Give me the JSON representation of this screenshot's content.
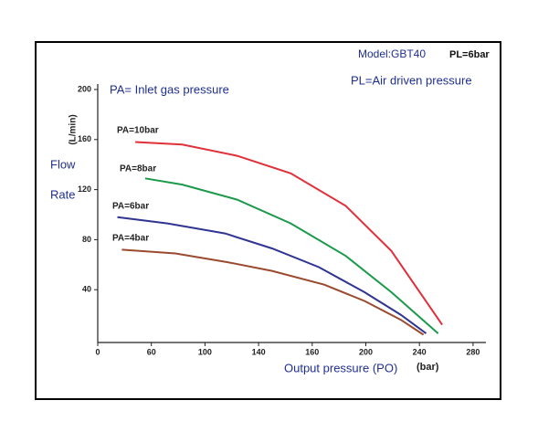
{
  "chart_data": {
    "type": "line",
    "model": "Model:GBT40",
    "pl": "PL=6bar",
    "pl_note": "PL=Air driven pressure",
    "pa_note": "PA= Inlet gas pressure",
    "y_label": [
      "Flow",
      "Rate"
    ],
    "y_unit": "(L/min)",
    "x_label": "Output pressure (PO)",
    "x_unit": "(bar)",
    "xlim": [
      0,
      290
    ],
    "xticks": [
      0,
      60,
      100,
      140,
      160,
      200,
      240,
      280
    ],
    "ylim": [
      0,
      200
    ],
    "yticks": [
      40,
      80,
      120,
      160,
      200
    ],
    "series": [
      {
        "name": "PA=10bar",
        "color": "#e0303a",
        "x": [
          42,
          83,
          124,
          152,
          185,
          219,
          257
        ],
        "values": [
          158,
          156,
          147,
          133,
          107,
          71,
          12
        ]
      },
      {
        "name": "PA=8bar",
        "color": "#1a9a4a",
        "x": [
          53,
          83,
          124,
          152,
          185,
          219,
          254
        ],
        "values": [
          129,
          124,
          112,
          93,
          67,
          38,
          5
        ]
      },
      {
        "name": "PA=6bar",
        "color": "#2f3590",
        "x": [
          22,
          72,
          115,
          145,
          165,
          199,
          226,
          245
        ],
        "values": [
          98,
          93,
          85,
          73,
          58,
          38,
          20,
          5
        ]
      },
      {
        "name": "PA=4bar",
        "color": "#9a4a2e",
        "x": [
          27,
          78,
          117,
          145,
          169,
          199,
          226,
          243
        ],
        "values": [
          72,
          69,
          62,
          55,
          44,
          31,
          16,
          4
        ]
      }
    ]
  }
}
